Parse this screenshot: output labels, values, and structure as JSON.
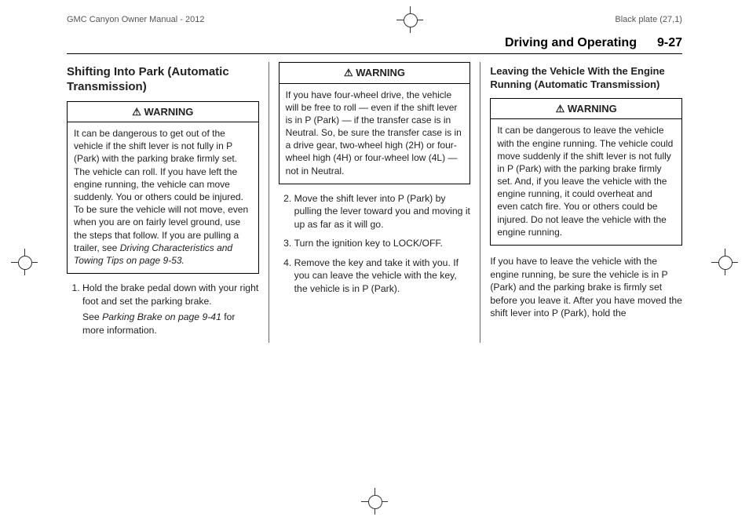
{
  "header": {
    "left": "GMC Canyon Owner Manual - 2012",
    "right": "Black plate (27,1)"
  },
  "chapter": {
    "title": "Driving and Operating",
    "pagenum": "9-27"
  },
  "col1": {
    "heading": "Shifting Into Park (Automatic Transmission)",
    "warn_label": "WARNING",
    "warn_body_a": "It can be dangerous to get out of the vehicle if the shift lever is not fully in P (Park) with the parking brake firmly set. The vehicle can roll. If you have left the engine running, the vehicle can move suddenly. You or others could be injured. To be sure the vehicle will not move, even when you are on fairly level ground, use the steps that follow. If you are pulling a trailer, see ",
    "warn_body_em": "Driving Characteristics and Towing Tips on page 9-53.",
    "step1": "Hold the brake pedal down with your right foot and set the parking brake.",
    "step1_sub_a": "See ",
    "step1_sub_em": "Parking Brake on page 9-41",
    "step1_sub_b": " for more information."
  },
  "col2": {
    "warn_label": "WARNING",
    "warn_body": "If you have four-wheel drive, the vehicle will be free to roll — even if the shift lever is in P (Park) — if the transfer case is in Neutral. So, be sure the transfer case is in a drive gear, two-wheel high (2H) or four-wheel high (4H) or four-wheel low (4L) — not in Neutral.",
    "step2": "Move the shift lever into P (Park) by pulling the lever toward you and moving it up as far as it will go.",
    "step3": "Turn the ignition key to LOCK/OFF.",
    "step4": "Remove the key and take it with you. If you can leave the vehicle with the key, the vehicle is in P (Park)."
  },
  "col3": {
    "heading": "Leaving the Vehicle With the Engine Running (Automatic Transmission)",
    "warn_label": "WARNING",
    "warn_body": "It can be dangerous to leave the vehicle with the engine running. The vehicle could move suddenly if the shift lever is not fully in P (Park) with the parking brake firmly set. And, if you leave the vehicle with the engine running, it could overheat and even catch fire. You or others could be injured. Do not leave the vehicle with the engine running.",
    "para": "If you have to leave the vehicle with the engine running, be sure the vehicle is in P (Park) and the parking brake is firmly set before you leave it. After you have moved the shift lever into P (Park), hold the"
  }
}
